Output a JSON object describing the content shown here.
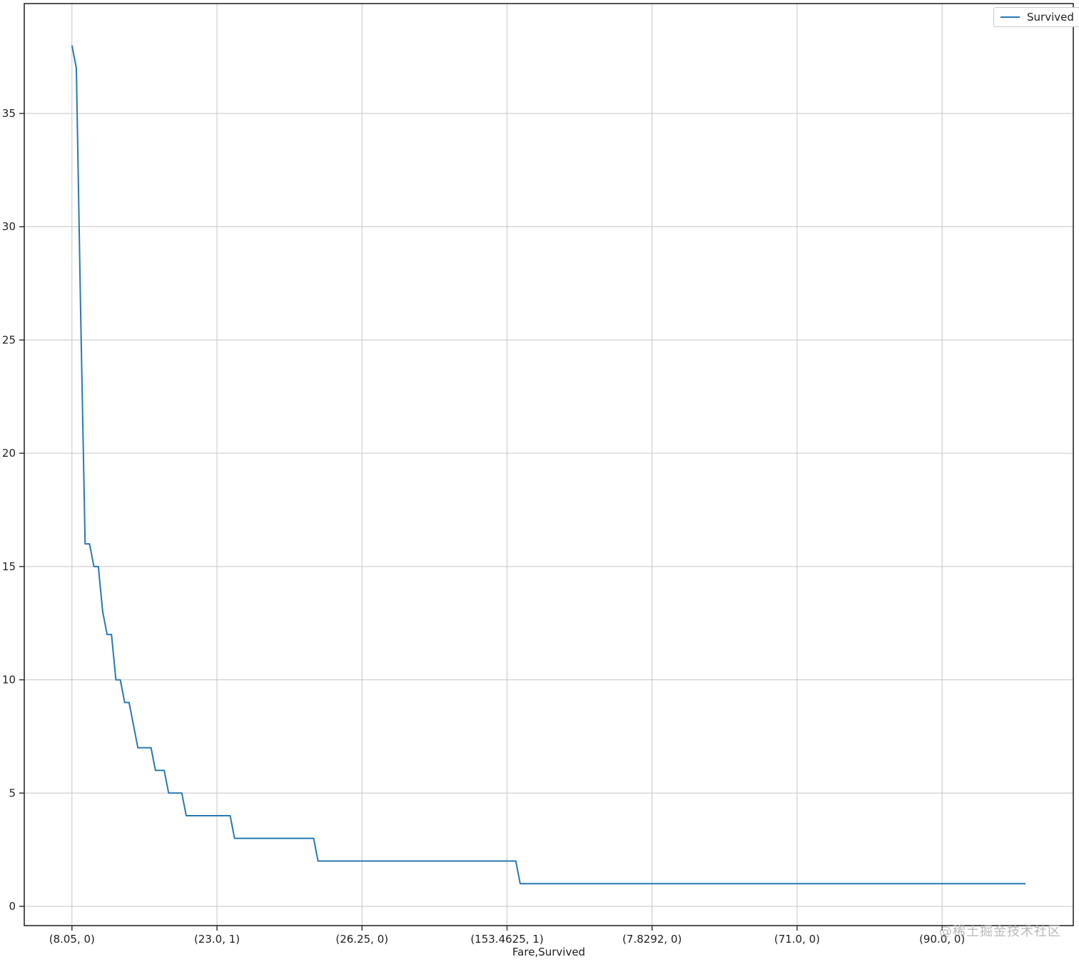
{
  "figure": {
    "background": "#ffffff",
    "border_color": "#2a2a2a",
    "text_color": "#1f1f1f"
  },
  "legend": {
    "label": "Survived",
    "line_color": "#2878b4"
  },
  "watermark": {
    "text": "@稀土掘金技术社区",
    "color": "#b3b3b3"
  },
  "chart_data": {
    "type": "line",
    "title": "",
    "xlabel": "Fare,Survived",
    "ylabel": "",
    "series_name": "Survived",
    "line_color": "#2878b4",
    "grid": true,
    "grid_color": "#c6c6c6",
    "legend_position": "upper right",
    "ylim": [
      -0.85,
      39.85
    ],
    "xlim": [
      -10.85,
      227.85
    ],
    "y_ticks": [
      0,
      5,
      10,
      15,
      20,
      25,
      30,
      35
    ],
    "x_tick_indices": [
      0,
      33,
      66,
      99,
      132,
      165,
      198
    ],
    "x_tick_labels": [
      "(8.05, 0)",
      "(23.0, 1)",
      "(26.25, 0)",
      "(153.4625, 1)",
      "(7.8292, 0)",
      "(71.0, 0)",
      "(90.0, 0)"
    ],
    "n_points": 218,
    "value_runs_note": "run-length encoded counts: [value, repetitions] for category indices 0..217 sorted by descending count",
    "value_runs": [
      [
        38,
        1
      ],
      [
        37,
        1
      ],
      [
        26,
        1
      ],
      [
        16,
        2
      ],
      [
        15,
        2
      ],
      [
        13,
        1
      ],
      [
        12,
        2
      ],
      [
        10,
        2
      ],
      [
        9,
        2
      ],
      [
        8,
        1
      ],
      [
        7,
        4
      ],
      [
        6,
        3
      ],
      [
        5,
        4
      ],
      [
        4,
        11
      ],
      [
        3,
        19
      ],
      [
        2,
        46
      ],
      [
        1,
        116
      ]
    ]
  }
}
